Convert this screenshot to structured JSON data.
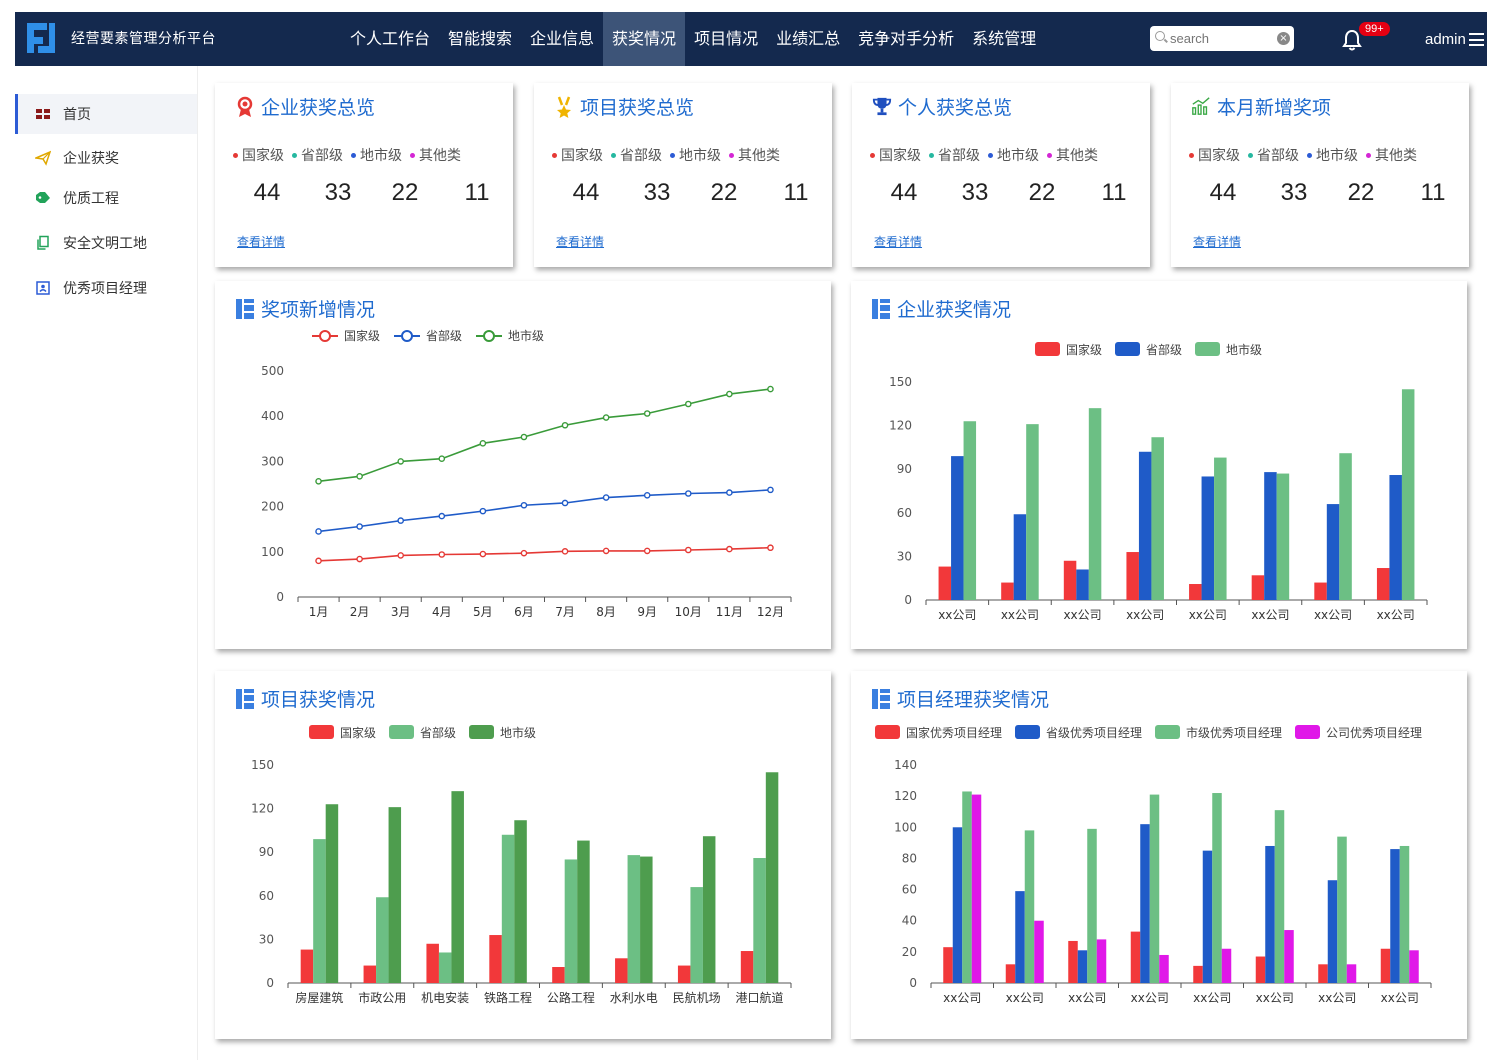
{
  "header": {
    "app_title": "经营要素管理分析平台",
    "nav": [
      "个人工作台",
      "智能搜索",
      "企业信息",
      "获奖情况",
      "项目情况",
      "业绩汇总",
      "竞争对手分析",
      "系统管理"
    ],
    "active_nav": 3,
    "search_placeholder": "search",
    "badge": "99+",
    "user": "admin"
  },
  "sidebar": {
    "items": [
      {
        "label": "首页",
        "icon": "dashboard-grid-icon",
        "color": "#8b1a1a"
      },
      {
        "label": "企业获奖",
        "icon": "paper-plane-icon",
        "color": "#e0a800"
      },
      {
        "label": "优质工程",
        "icon": "tag-icon",
        "color": "#22a35a"
      },
      {
        "label": "安全文明工地",
        "icon": "copy-icon",
        "color": "#22a35a"
      },
      {
        "label": "优秀项目经理",
        "icon": "id-card-icon",
        "color": "#2c5bd5"
      }
    ],
    "active": 0
  },
  "summary_cards": [
    {
      "title": "企业获奖总览",
      "icon": "ribbon-medal-icon",
      "icon_color": "#e53935",
      "legend": [
        "国家级",
        "省部级",
        "地市级",
        "其他类"
      ],
      "values": [
        "44",
        "33",
        "22",
        "11"
      ],
      "link": "查看详情"
    },
    {
      "title": "项目获奖总览",
      "icon": "medal-icon",
      "icon_color": "#f0b400",
      "legend": [
        "国家级",
        "省部级",
        "地市级",
        "其他类"
      ],
      "values": [
        "44",
        "33",
        "22",
        "11"
      ],
      "link": "查看详情"
    },
    {
      "title": "个人获奖总览",
      "icon": "trophy-icon",
      "icon_color": "#1f4fbf",
      "legend": [
        "国家级",
        "省部级",
        "地市级",
        "其他类"
      ],
      "values": [
        "44",
        "33",
        "22",
        "11"
      ],
      "link": "查看详情"
    },
    {
      "title": "本月新增奖项",
      "icon": "growth-chart-icon",
      "icon_color": "#3aa845",
      "legend": [
        "国家级",
        "省部级",
        "地市级",
        "其他类"
      ],
      "values": [
        "44",
        "33",
        "22",
        "11"
      ],
      "link": "查看详情"
    }
  ],
  "legend_colors": [
    "#e53935",
    "#26b8a0",
    "#2c5bd5",
    "#d426d4"
  ],
  "chart_titles": {
    "award_growth": "奖项新增情况",
    "company_awards": "企业获奖情况",
    "project_awards": "项目获奖情况",
    "manager_awards": "项目经理获奖情况"
  },
  "chart_data": [
    {
      "id": "award_growth",
      "type": "line",
      "title": "奖项新增情况",
      "x": [
        "1月",
        "2月",
        "3月",
        "4月",
        "5月",
        "6月",
        "7月",
        "8月",
        "9月",
        "10月",
        "11月",
        "12月"
      ],
      "ylim": [
        0,
        500
      ],
      "yticks": [
        0,
        100,
        200,
        300,
        400,
        500
      ],
      "legend_position": "top-center",
      "series": [
        {
          "name": "国家级",
          "color": "#e53935",
          "values": [
            80,
            84,
            92,
            94,
            95,
            97,
            101,
            102,
            102,
            104,
            106,
            109
          ]
        },
        {
          "name": "省部级",
          "color": "#1f5bc8",
          "values": [
            145,
            156,
            169,
            179,
            190,
            203,
            208,
            220,
            225,
            229,
            231,
            237
          ]
        },
        {
          "name": "地市级",
          "color": "#3a9b3a",
          "values": [
            256,
            267,
            300,
            306,
            340,
            354,
            380,
            397,
            406,
            427,
            449,
            460
          ]
        }
      ]
    },
    {
      "id": "company_awards",
      "type": "bar",
      "title": "企业获奖情况",
      "categories": [
        "xx公司",
        "xx公司",
        "xx公司",
        "xx公司",
        "xx公司",
        "xx公司",
        "xx公司",
        "xx公司"
      ],
      "ylim": [
        0,
        150
      ],
      "yticks": [
        0,
        30,
        60,
        90,
        120,
        150
      ],
      "legend_position": "top-center",
      "series": [
        {
          "name": "国家级",
          "color": "#f2383a",
          "values": [
            23,
            12,
            27,
            33,
            11,
            17,
            12,
            22
          ]
        },
        {
          "name": "省部级",
          "color": "#1f5bc8",
          "values": [
            99,
            59,
            21,
            102,
            85,
            88,
            66,
            86
          ]
        },
        {
          "name": "地市级",
          "color": "#6cbf84",
          "values": [
            123,
            121,
            132,
            112,
            98,
            87,
            101,
            145
          ]
        }
      ]
    },
    {
      "id": "project_awards",
      "type": "bar",
      "title": "项目获奖情况",
      "categories": [
        "房屋建筑",
        "市政公用",
        "机电安装",
        "铁路工程",
        "公路工程",
        "水利水电",
        "民航机场",
        "港口航道"
      ],
      "ylim": [
        0,
        150
      ],
      "yticks": [
        0,
        30,
        60,
        90,
        120,
        150
      ],
      "legend_position": "top-center",
      "series": [
        {
          "name": "国家级",
          "color": "#f2383a",
          "values": [
            23,
            12,
            27,
            33,
            11,
            17,
            12,
            22
          ]
        },
        {
          "name": "省部级",
          "color": "#6cbf84",
          "values": [
            99,
            59,
            21,
            102,
            85,
            88,
            66,
            86
          ]
        },
        {
          "name": "地市级",
          "color": "#4e9d4e",
          "values": [
            123,
            121,
            132,
            112,
            98,
            87,
            101,
            145
          ]
        }
      ]
    },
    {
      "id": "manager_awards",
      "type": "bar",
      "title": "项目经理获奖情况",
      "categories": [
        "xx公司",
        "xx公司",
        "xx公司",
        "xx公司",
        "xx公司",
        "xx公司",
        "xx公司",
        "xx公司"
      ],
      "ylim": [
        0,
        140
      ],
      "yticks": [
        0,
        20,
        40,
        60,
        80,
        100,
        120,
        140
      ],
      "legend_position": "top-center",
      "series": [
        {
          "name": "国家优秀项目经理",
          "color": "#f2383a",
          "values": [
            23,
            12,
            27,
            33,
            11,
            17,
            12,
            22
          ]
        },
        {
          "name": "省级优秀项目经理",
          "color": "#1f5bc8",
          "values": [
            100,
            59,
            21,
            102,
            85,
            88,
            66,
            86
          ]
        },
        {
          "name": "市级优秀项目经理",
          "color": "#6cbf84",
          "values": [
            123,
            98,
            99,
            121,
            122,
            111,
            94,
            88
          ]
        },
        {
          "name": "公司优秀项目经理",
          "color": "#e018e8",
          "values": [
            121,
            40,
            28,
            18,
            22,
            34,
            12,
            21
          ]
        }
      ]
    }
  ]
}
